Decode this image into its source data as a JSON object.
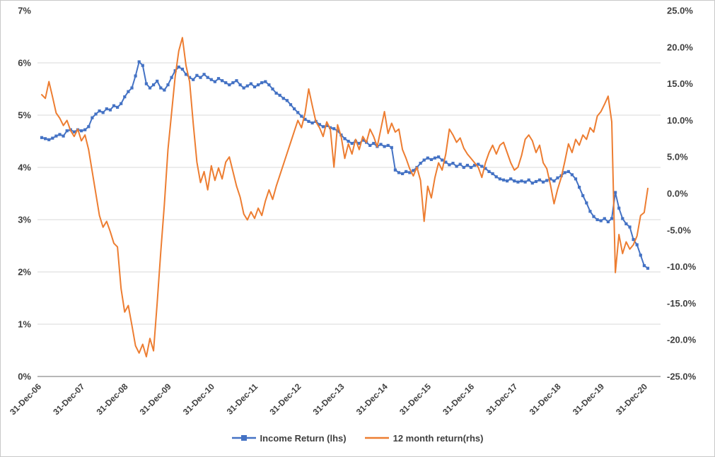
{
  "chart": {
    "title": "",
    "background": "#ffffff",
    "grid_color": "#d9d9d9",
    "axis_line_color": "#8c8c8c",
    "text_color": "#3f3f3f"
  },
  "chart_data": {
    "type": "line",
    "frequency": "monthly",
    "points_per_label": 12,
    "grid": true,
    "legend_position": "bottom",
    "x_labels": [
      "31-Dec-06",
      "31-Dec-07",
      "31-Dec-08",
      "31-Dec-09",
      "31-Dec-10",
      "31-Dec-11",
      "31-Dec-12",
      "31-Dec-13",
      "31-Dec-14",
      "31-Dec-15",
      "31-Dec-16",
      "31-Dec-17",
      "31-Dec-18",
      "31-Dec-19",
      "31-Dec-20"
    ],
    "left_axis": {
      "min": 0,
      "max": 7,
      "step": 1,
      "tick_labels": [
        "0%",
        "1%",
        "2%",
        "3%",
        "4%",
        "5%",
        "6%",
        "7%"
      ]
    },
    "right_axis": {
      "min": -25,
      "max": 25,
      "step": 5,
      "tick_labels": [
        "-25.0%",
        "-20.0%",
        "-15.0%",
        "-10.0%",
        "-5.0%",
        "0.0%",
        "5.0%",
        "10.0%",
        "15.0%",
        "20.0%",
        "25.0%"
      ]
    },
    "series": [
      {
        "name": "Income Return (lhs)",
        "axis": "left",
        "color": "#4472c4",
        "marker": "square",
        "values": [
          4.57,
          4.55,
          4.53,
          4.56,
          4.6,
          4.63,
          4.6,
          4.7,
          4.72,
          4.68,
          4.72,
          4.7,
          4.72,
          4.78,
          4.95,
          5.02,
          5.08,
          5.05,
          5.12,
          5.1,
          5.18,
          5.15,
          5.22,
          5.35,
          5.45,
          5.52,
          5.75,
          6.02,
          5.95,
          5.6,
          5.52,
          5.58,
          5.65,
          5.52,
          5.48,
          5.58,
          5.72,
          5.85,
          5.92,
          5.88,
          5.78,
          5.72,
          5.68,
          5.76,
          5.72,
          5.78,
          5.72,
          5.68,
          5.64,
          5.7,
          5.66,
          5.62,
          5.58,
          5.62,
          5.66,
          5.58,
          5.52,
          5.56,
          5.6,
          5.54,
          5.58,
          5.62,
          5.64,
          5.58,
          5.5,
          5.42,
          5.38,
          5.32,
          5.28,
          5.2,
          5.12,
          5.05,
          4.98,
          4.92,
          4.88,
          4.85,
          4.88,
          4.82,
          4.78,
          4.8,
          4.76,
          4.74,
          4.7,
          4.62,
          4.55,
          4.5,
          4.46,
          4.5,
          4.46,
          4.52,
          4.48,
          4.42,
          4.46,
          4.4,
          4.44,
          4.4,
          4.42,
          4.38,
          3.95,
          3.9,
          3.88,
          3.92,
          3.9,
          3.94,
          4.0,
          4.08,
          4.14,
          4.18,
          4.15,
          4.18,
          4.2,
          4.14,
          4.1,
          4.05,
          4.08,
          4.02,
          4.06,
          4.0,
          4.04,
          4.0,
          4.04,
          4.06,
          4.02,
          3.98,
          3.92,
          3.88,
          3.82,
          3.78,
          3.76,
          3.74,
          3.78,
          3.74,
          3.72,
          3.74,
          3.72,
          3.76,
          3.7,
          3.73,
          3.76,
          3.72,
          3.75,
          3.78,
          3.74,
          3.8,
          3.84,
          3.9,
          3.92,
          3.86,
          3.78,
          3.62,
          3.46,
          3.32,
          3.16,
          3.06,
          3.0,
          2.98,
          3.02,
          2.96,
          3.02,
          3.52,
          3.22,
          3.02,
          2.92,
          2.86,
          2.62,
          2.52,
          2.32,
          2.12,
          2.07
        ]
      },
      {
        "name": "12 month return(rhs)",
        "axis": "right",
        "color": "#ed7d31",
        "marker": "none",
        "values": [
          13.5,
          13.0,
          15.3,
          13.2,
          11.0,
          10.3,
          9.3,
          10.0,
          8.6,
          7.8,
          8.8,
          7.2,
          8.0,
          6.0,
          3.0,
          0.0,
          -3.0,
          -4.6,
          -3.8,
          -5.2,
          -6.8,
          -7.3,
          -13.0,
          -16.2,
          -15.3,
          -18.0,
          -20.8,
          -21.8,
          -20.6,
          -22.3,
          -19.8,
          -21.5,
          -15.0,
          -8.0,
          -1.5,
          6.0,
          11.0,
          16.0,
          19.5,
          21.3,
          17.5,
          15.3,
          9.5,
          4.3,
          1.5,
          3.0,
          0.5,
          3.8,
          1.8,
          3.5,
          2.0,
          4.3,
          5.0,
          3.0,
          1.0,
          -0.5,
          -2.8,
          -3.6,
          -2.5,
          -3.4,
          -2.0,
          -3.0,
          -1.0,
          0.5,
          -0.8,
          1.0,
          2.5,
          4.0,
          5.5,
          7.0,
          8.5,
          10.0,
          9.0,
          11.0,
          14.3,
          12.0,
          9.8,
          9.0,
          7.8,
          9.8,
          8.8,
          3.6,
          9.4,
          7.8,
          4.8,
          6.8,
          5.4,
          7.4,
          6.0,
          7.8,
          7.0,
          8.8,
          7.8,
          6.4,
          8.8,
          11.2,
          8.2,
          9.6,
          8.4,
          8.8,
          6.0,
          4.8,
          3.4,
          2.4,
          3.6,
          1.8,
          -3.8,
          1.0,
          -0.6,
          2.2,
          4.2,
          3.2,
          5.4,
          8.8,
          8.0,
          7.0,
          7.6,
          6.2,
          5.4,
          4.8,
          4.2,
          3.6,
          2.2,
          4.2,
          5.6,
          6.6,
          5.4,
          6.6,
          7.0,
          5.6,
          4.2,
          3.2,
          3.6,
          5.2,
          7.4,
          8.0,
          7.2,
          5.6,
          6.6,
          4.2,
          3.4,
          1.2,
          -1.4,
          0.6,
          2.2,
          4.4,
          6.8,
          5.6,
          7.4,
          6.6,
          8.0,
          7.4,
          9.0,
          8.4,
          10.6,
          11.2,
          12.2,
          13.3,
          9.8,
          -10.8,
          -5.6,
          -8.2,
          -6.6,
          -7.6,
          -7.0,
          -5.8,
          -3.0,
          -2.6,
          0.7
        ]
      }
    ]
  },
  "legend": {
    "items": [
      {
        "label": "Income Return (lhs)"
      },
      {
        "label": "12 month return(rhs)"
      }
    ]
  }
}
